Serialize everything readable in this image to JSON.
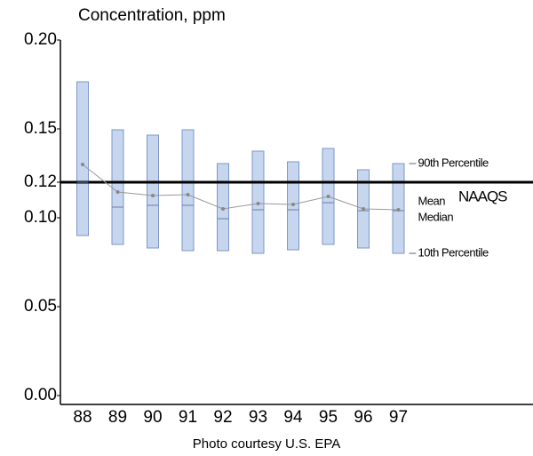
{
  "chart_data": {
    "type": "box",
    "title": "Concentration, ppm",
    "caption": "Photo courtesy U.S. EPA",
    "categories": [
      "88",
      "89",
      "90",
      "91",
      "92",
      "93",
      "94",
      "95",
      "96",
      "97"
    ],
    "series": [
      {
        "name": "90th Percentile",
        "color": "#c6d6ef",
        "values": [
          0.1765,
          0.1495,
          0.1465,
          0.1495,
          0.1305,
          0.1375,
          0.1315,
          0.139,
          0.127,
          0.1305
        ]
      },
      {
        "name": "Mean",
        "color": "#999999",
        "values": [
          0.13,
          0.1145,
          0.1125,
          0.113,
          0.105,
          0.108,
          0.1075,
          0.112,
          0.105,
          0.1045
        ]
      },
      {
        "name": "Median",
        "color": "#6f7f9f",
        "values": [
          0.12,
          0.106,
          0.107,
          0.107,
          0.0995,
          0.1045,
          0.1045,
          0.1085,
          0.104,
          0.104
        ]
      },
      {
        "name": "10th Percentile",
        "color": "#c6d6ef",
        "values": [
          0.09,
          0.085,
          0.083,
          0.0815,
          0.0815,
          0.08,
          0.082,
          0.085,
          0.083,
          0.08
        ]
      }
    ],
    "standard": {
      "label": "NAAQS",
      "value": 0.12,
      "color": "#000000"
    },
    "ylim": [
      0,
      0.2
    ],
    "yticks": [
      {
        "value": 0,
        "label": "0.00"
      },
      0.05,
      {
        "value": 0.1,
        "label": "0.10"
      },
      0.12,
      0.15,
      {
        "value": 0.2,
        "label": "0.20"
      }
    ]
  }
}
